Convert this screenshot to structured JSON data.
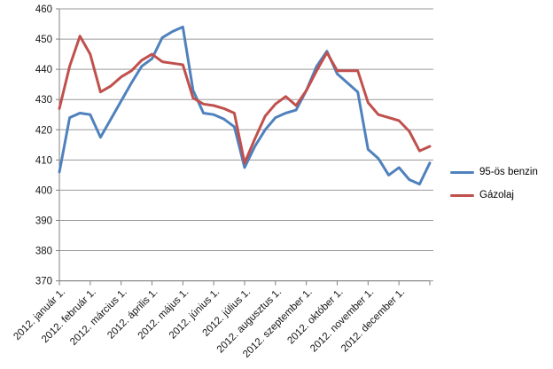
{
  "chart_data": {
    "type": "line",
    "title": "",
    "xlabel": "",
    "ylabel": "",
    "grid": "horizontal",
    "legend_position": "right",
    "y_axis": {
      "min": 370,
      "max": 460,
      "step": 10,
      "tick_labels": [
        "370",
        "380",
        "390",
        "400",
        "410",
        "420",
        "430",
        "440",
        "450",
        "460"
      ]
    },
    "x_axis": {
      "tick_labels": [
        "2012. január 1.",
        "2012. február 1.",
        "2012. március 1.",
        "2012. április 1.",
        "2012. május 1.",
        "2012. június 1.",
        "2012. július 1.",
        "2012. augusztus 1.",
        "2012. szeptember 1.",
        "2012. október 1.",
        "2012. november 1.",
        "2012. december 1."
      ],
      "points_per_label": 3,
      "points_interval_days": 10
    },
    "series": [
      {
        "name": "95-ös benzin",
        "color": "#4F81BD",
        "values": [
          406,
          424,
          425.5,
          425,
          417.5,
          423.5,
          429.5,
          435.5,
          441,
          443.5,
          450.5,
          452.5,
          454,
          433,
          425.5,
          425,
          423.5,
          421,
          407.5,
          414.5,
          420,
          424,
          425.5,
          426.5,
          433,
          441,
          446,
          438.5,
          435.5,
          432.5,
          413.5,
          410.5,
          405,
          407.5,
          403.5,
          402,
          409
        ]
      },
      {
        "name": "Gázolaj",
        "color": "#C0504D",
        "values": [
          427,
          441,
          451,
          445,
          432.5,
          434.5,
          437.5,
          439.5,
          443,
          445,
          442.5,
          442,
          441.5,
          430.5,
          428.5,
          428,
          427,
          425.5,
          409,
          417,
          424.5,
          428.5,
          431,
          428,
          433,
          439.5,
          445.5,
          439.5,
          439.5,
          439.5,
          429,
          425,
          424,
          423,
          419.5,
          413,
          414.5
        ]
      }
    ],
    "colors": {
      "gridline": "#9A9A9A",
      "axis": "#808080",
      "label_text": "#141414"
    }
  },
  "legend": {
    "items": [
      {
        "label": "95-ös benzin"
      },
      {
        "label": "Gázolaj"
      }
    ]
  }
}
